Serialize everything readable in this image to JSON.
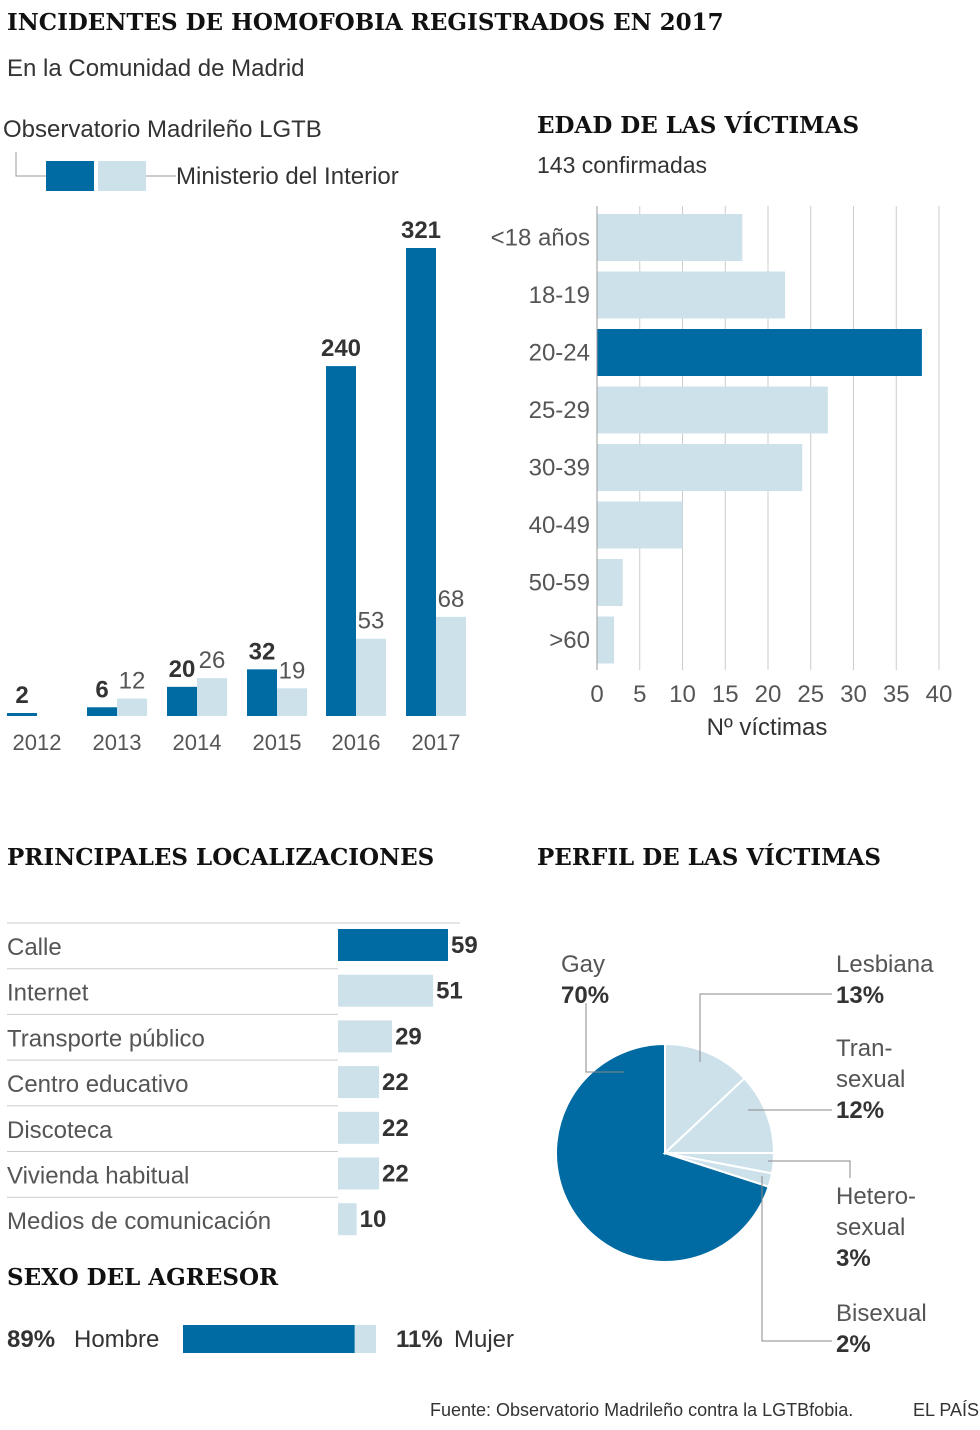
{
  "title": "INCIDENTES DE HOMOFOBIA REGISTRADOS EN 2017",
  "subtitle": "En la Comunidad de Madrid",
  "source": "Fuente: Observatorio Madrileño contra la LGTBfobia.",
  "brand": "EL PAÍS",
  "colors": {
    "dark": "#006aa3",
    "light": "#cde1eb",
    "grid": "#cccccc"
  },
  "chart_data": [
    {
      "type": "bar",
      "id": "incidents",
      "legend": [
        "Observatorio Madrileño LGTB",
        "Ministerio del Interior"
      ],
      "categories": [
        "2012",
        "2013",
        "2014",
        "2015",
        "2016",
        "2017"
      ],
      "series": [
        {
          "name": "Observatorio Madrileño LGTB",
          "values": [
            2,
            6,
            20,
            32,
            240,
            321
          ]
        },
        {
          "name": "Ministerio del Interior",
          "values": [
            null,
            12,
            26,
            19,
            53,
            68
          ]
        }
      ],
      "ylim": [
        0,
        321
      ]
    },
    {
      "type": "bar",
      "id": "age",
      "orientation": "horizontal",
      "title": "EDAD DE LAS VÍCTIMAS",
      "subtitle": "143 confirmadas",
      "categories": [
        "<18 años",
        "18-19",
        "20-24",
        "25-29",
        "30-39",
        "40-49",
        "50-59",
        ">60"
      ],
      "values": [
        17,
        22,
        38,
        27,
        24,
        10,
        3,
        2
      ],
      "highlight_index": 2,
      "xlabel": "Nº víctimas",
      "xticks": [
        0,
        5,
        10,
        15,
        20,
        25,
        30,
        35,
        40
      ],
      "xlim": [
        0,
        40
      ]
    },
    {
      "type": "bar",
      "id": "locations",
      "orientation": "horizontal",
      "title": "PRINCIPALES LOCALIZACIONES",
      "categories": [
        "Calle",
        "Internet",
        "Transporte público",
        "Centro educativo",
        "Discoteca",
        "Vivienda habitual",
        "Medios de comunicación"
      ],
      "values": [
        59,
        51,
        29,
        22,
        22,
        22,
        10
      ],
      "highlight_index": 0,
      "xlim": [
        0,
        59
      ]
    },
    {
      "type": "bar",
      "id": "aggressor",
      "orientation": "stacked-horizontal",
      "title": "SEXO DEL AGRESOR",
      "categories": [
        "Hombre",
        "Mujer"
      ],
      "values": [
        89,
        11
      ],
      "value_labels": [
        "89%",
        "11%"
      ]
    },
    {
      "type": "pie",
      "id": "profile",
      "title": "PERFIL DE LAS VÍCTIMAS",
      "categories": [
        "Gay",
        "Lesbiana",
        "Transexual",
        "Heterosexual",
        "Bisexual"
      ],
      "label_lines": [
        [
          "Gay"
        ],
        [
          "Lesbiana"
        ],
        [
          "Tran-",
          "sexual"
        ],
        [
          "Hetero-",
          "sexual"
        ],
        [
          "Bisexual"
        ]
      ],
      "values": [
        70,
        13,
        12,
        3,
        2
      ],
      "value_labels": [
        "70%",
        "13%",
        "12%",
        "3%",
        "2%"
      ]
    }
  ]
}
